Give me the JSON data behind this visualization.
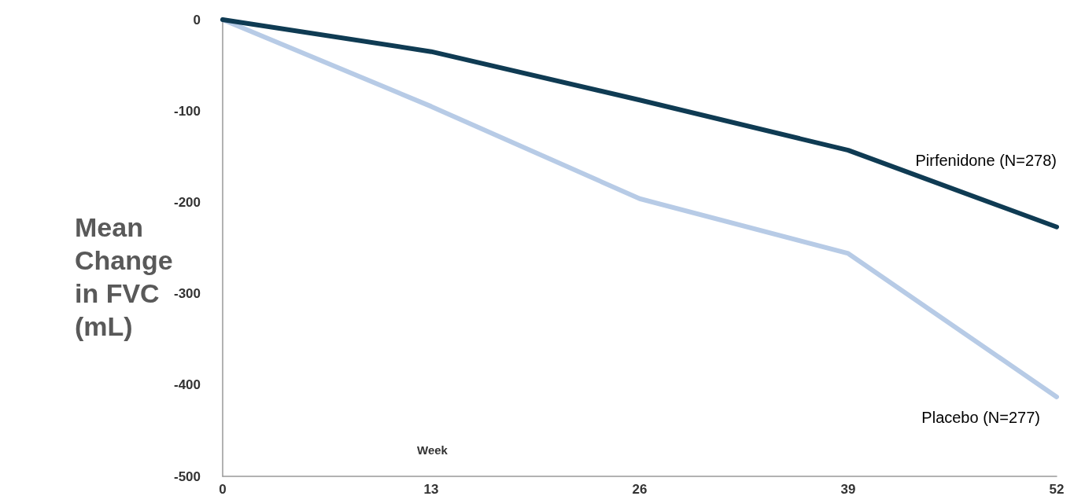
{
  "chart_data": {
    "type": "line",
    "xlabel": "Week",
    "ylabel": "Mean\nChange\nin FVC\n(mL)",
    "x": [
      0,
      13,
      26,
      39,
      52
    ],
    "series": [
      {
        "name": "Pirfenidone (N=278)",
        "color": "#0f3b53",
        "values": [
          0,
          -35,
          -88,
          -143,
          -227
        ]
      },
      {
        "name": "Placebo (N=277)",
        "color": "#b7cbe6",
        "values": [
          0,
          -95,
          -196,
          -256,
          -413
        ]
      }
    ],
    "xlim": [
      0,
      52
    ],
    "xticks": [
      0,
      13,
      26,
      39,
      52
    ],
    "ylim": [
      -500,
      0
    ],
    "yticks": [
      0,
      -100,
      -200,
      -300,
      -400,
      -500
    ],
    "grid": false,
    "legend": false,
    "marker": "none",
    "line_style": "solid"
  }
}
